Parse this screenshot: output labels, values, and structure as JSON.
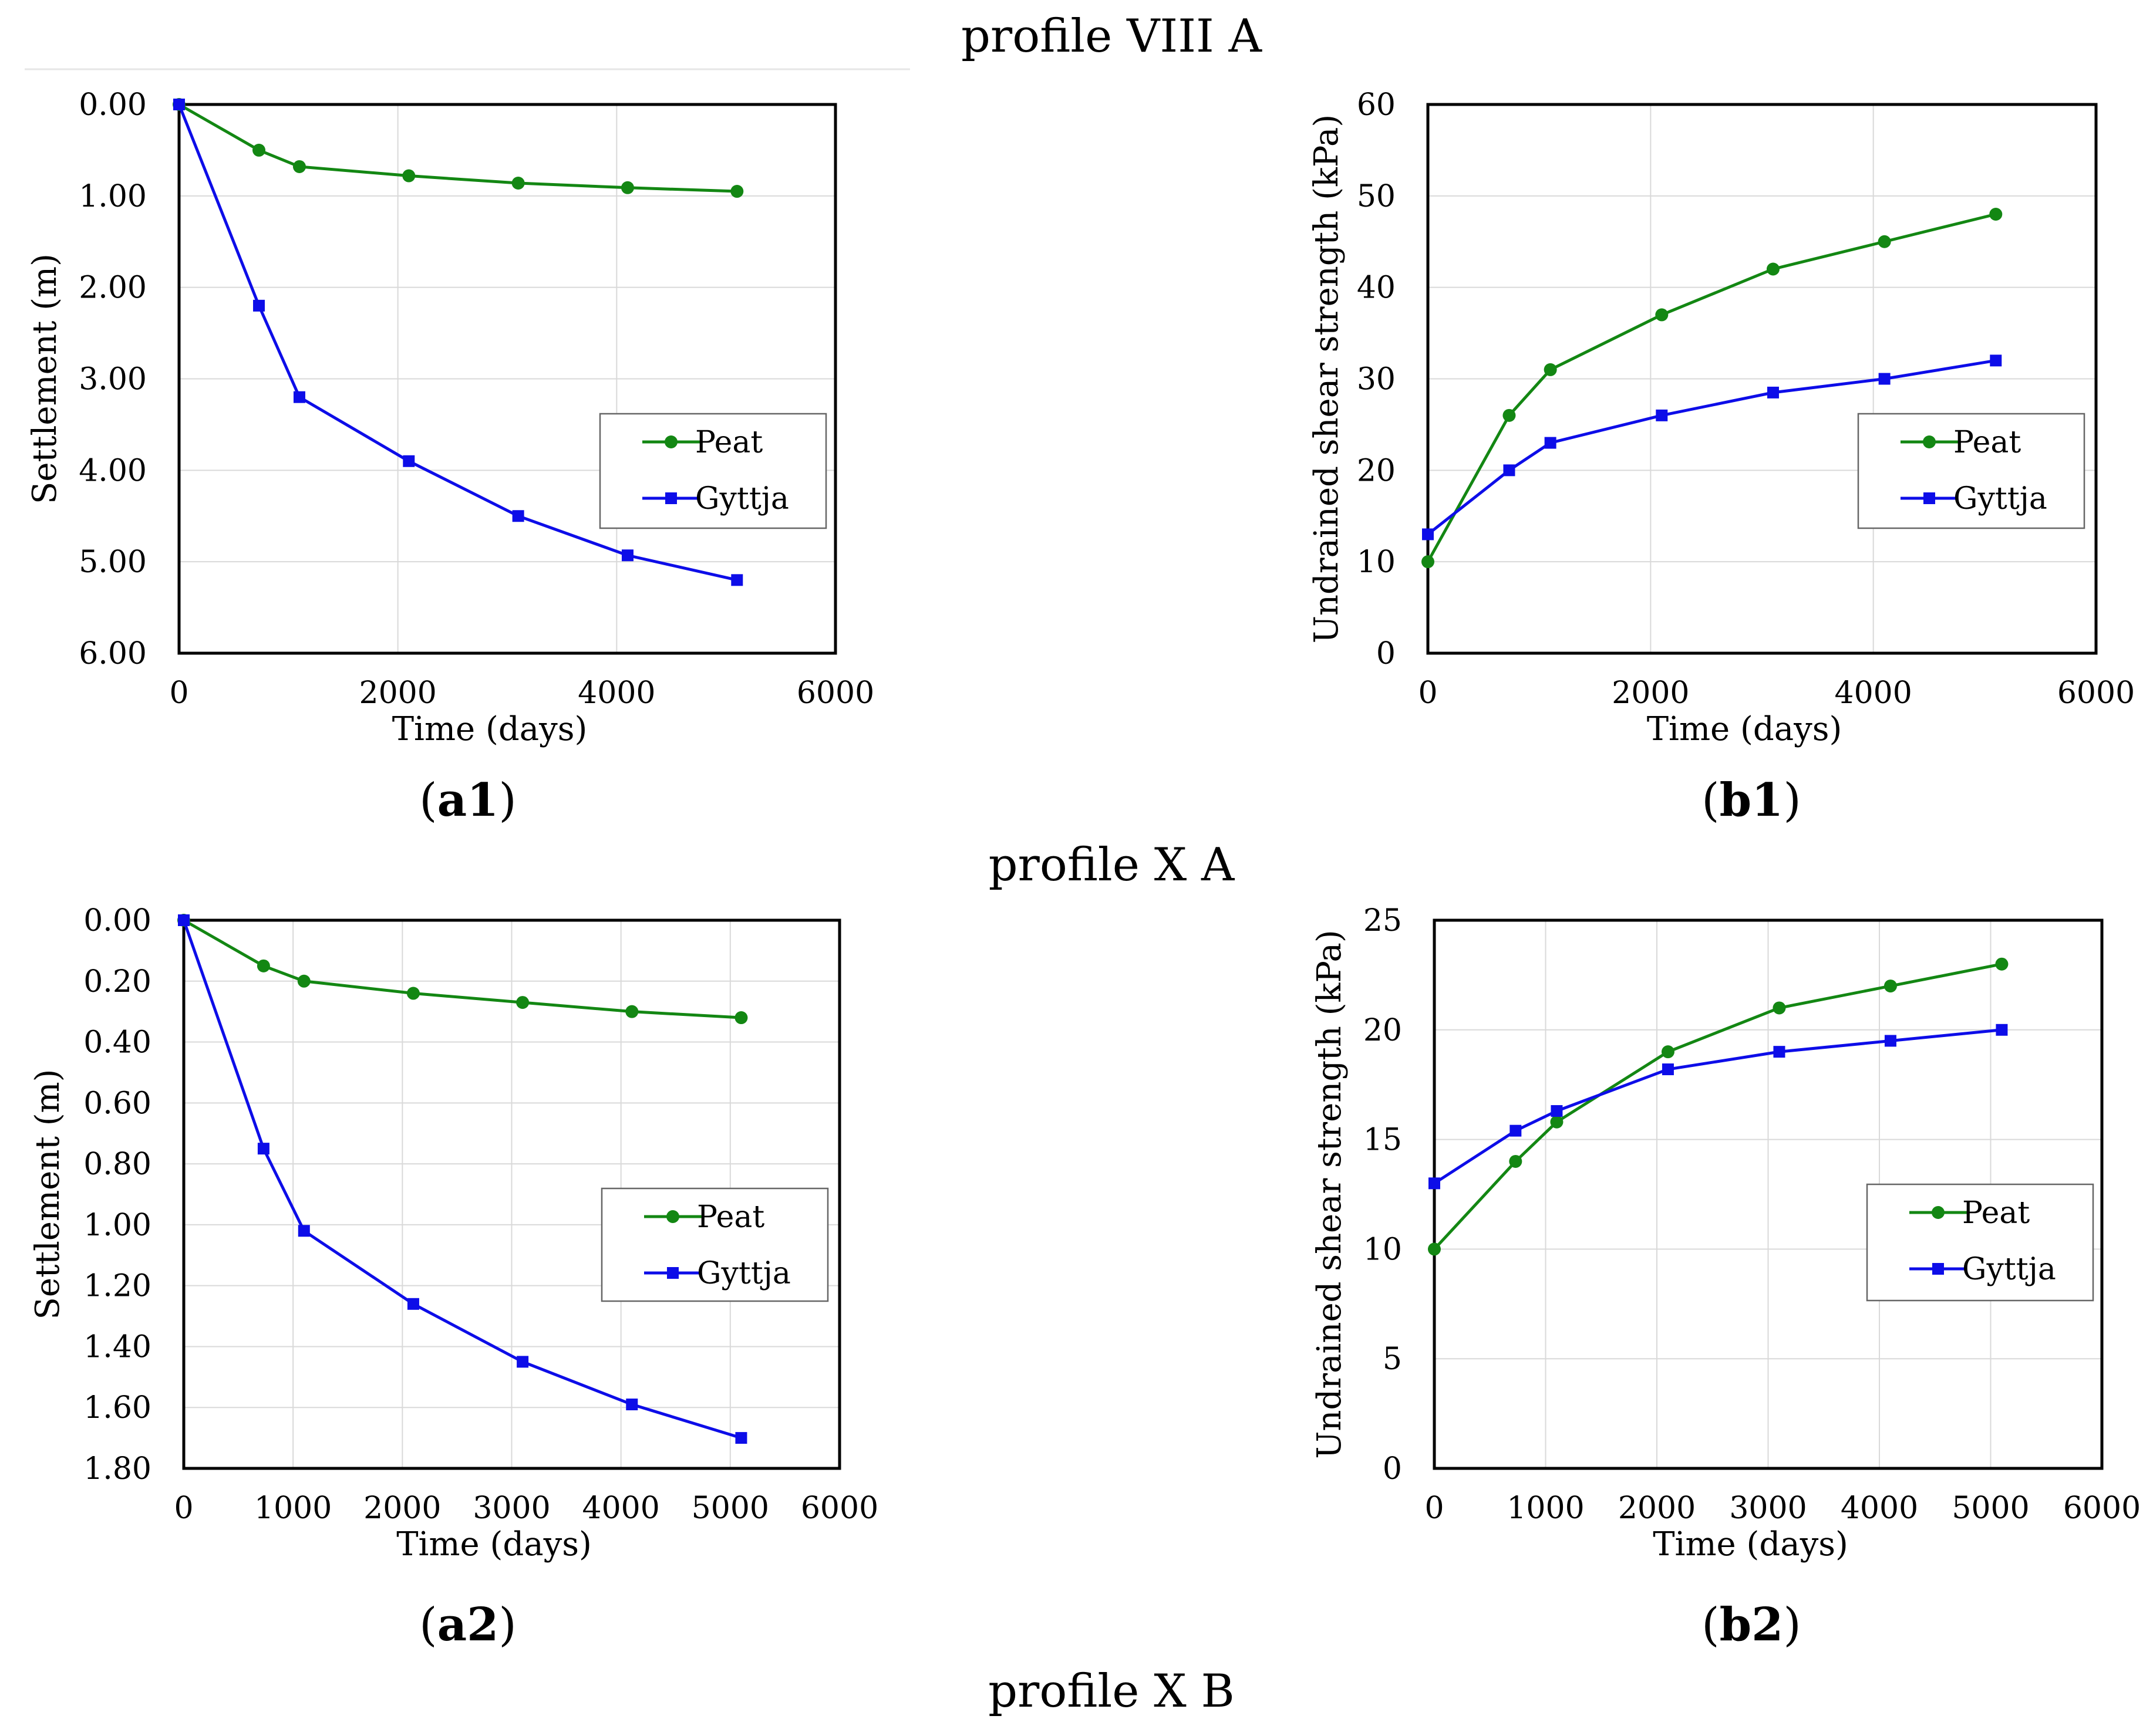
{
  "figure": {
    "headings": [
      "profile VIII A",
      "profile X A",
      "profile X B"
    ]
  },
  "colors": {
    "peat": "#138713",
    "gyttja": "#0d0de8",
    "grid": "#d9d9d9",
    "axis": "#000000"
  },
  "chart_data": [
    {
      "panel": "a1",
      "type": "line",
      "xlabel": "Time (days)",
      "ylabel": "Settlement (m)",
      "xlim": [
        0,
        6000
      ],
      "ylim": [
        0,
        6
      ],
      "y_inverted": true,
      "xticks": [
        0,
        2000,
        4000,
        6000
      ],
      "xtick_labels": [
        "0",
        "2000",
        "4000",
        "6000"
      ],
      "yticks": [
        0,
        1,
        2,
        3,
        4,
        5,
        6
      ],
      "ytick_labels": [
        "0.00",
        "1.00",
        "2.00",
        "3.00",
        "4.00",
        "5.00",
        "6.00"
      ],
      "grid": true,
      "legend": "right",
      "series": [
        {
          "name": "Peat",
          "marker": "circle",
          "color_key": "peat",
          "x": [
            0,
            730,
            1100,
            2100,
            3100,
            4100,
            5100
          ],
          "y": [
            0,
            0.5,
            0.68,
            0.78,
            0.86,
            0.91,
            0.95
          ]
        },
        {
          "name": "Gyttja",
          "marker": "square",
          "color_key": "gyttja",
          "x": [
            0,
            730,
            1100,
            2100,
            3100,
            4100,
            5100
          ],
          "y": [
            0,
            2.2,
            3.2,
            3.9,
            4.5,
            4.93,
            5.2
          ]
        }
      ]
    },
    {
      "panel": "b1",
      "type": "line",
      "xlabel": "Time (days)",
      "ylabel": "Undrained shear strength  (kPa)",
      "xlim": [
        0,
        6000
      ],
      "ylim": [
        0,
        60
      ],
      "y_inverted": false,
      "xticks": [
        0,
        2000,
        4000,
        6000
      ],
      "xtick_labels": [
        "0",
        "2000",
        "4000",
        "6000"
      ],
      "yticks": [
        0,
        10,
        20,
        30,
        40,
        50,
        60
      ],
      "ytick_labels": [
        "0",
        "10",
        "20",
        "30",
        "40",
        "50",
        "60"
      ],
      "grid": true,
      "legend": "right",
      "series": [
        {
          "name": "Peat",
          "marker": "circle",
          "color_key": "peat",
          "x": [
            0,
            730,
            1100,
            2100,
            3100,
            4100,
            5100
          ],
          "y": [
            10,
            26,
            31,
            37,
            42,
            45,
            48
          ]
        },
        {
          "name": "Gyttja",
          "marker": "square",
          "color_key": "gyttja",
          "x": [
            0,
            730,
            1100,
            2100,
            3100,
            4100,
            5100
          ],
          "y": [
            13,
            20,
            23,
            26,
            28.5,
            30,
            32
          ]
        }
      ]
    },
    {
      "panel": "a2",
      "type": "line",
      "xlabel": "Time (days)",
      "ylabel": "Settlement (m)",
      "xlim": [
        0,
        6000
      ],
      "ylim": [
        0,
        1.8
      ],
      "y_inverted": true,
      "xticks": [
        0,
        1000,
        2000,
        3000,
        4000,
        5000,
        6000
      ],
      "xtick_labels": [
        "0",
        "1000",
        "2000",
        "3000",
        "4000",
        "5000",
        "6000"
      ],
      "yticks": [
        0,
        0.2,
        0.4,
        0.6,
        0.8,
        1.0,
        1.2,
        1.4,
        1.6,
        1.8
      ],
      "ytick_labels": [
        "0.00",
        "0.20",
        "0.40",
        "0.60",
        "0.80",
        "1.00",
        "1.20",
        "1.40",
        "1.60",
        "1.80"
      ],
      "grid": true,
      "legend": "right",
      "series": [
        {
          "name": "Peat",
          "marker": "circle",
          "color_key": "peat",
          "x": [
            0,
            730,
            1100,
            2100,
            3100,
            4100,
            5100
          ],
          "y": [
            0,
            0.15,
            0.2,
            0.24,
            0.27,
            0.3,
            0.32
          ]
        },
        {
          "name": "Gyttja",
          "marker": "square",
          "color_key": "gyttja",
          "x": [
            0,
            730,
            1100,
            2100,
            3100,
            4100,
            5100
          ],
          "y": [
            0,
            0.75,
            1.02,
            1.26,
            1.45,
            1.59,
            1.7
          ]
        }
      ]
    },
    {
      "panel": "b2",
      "type": "line",
      "xlabel": "Time (days)",
      "ylabel": "Undrained shear strength  (kPa)",
      "xlim": [
        0,
        6000
      ],
      "ylim": [
        0,
        25
      ],
      "y_inverted": false,
      "xticks": [
        0,
        1000,
        2000,
        3000,
        4000,
        5000,
        6000
      ],
      "xtick_labels": [
        "0",
        "1000",
        "2000",
        "3000",
        "4000",
        "5000",
        "6000"
      ],
      "yticks": [
        0,
        5,
        10,
        15,
        20,
        25
      ],
      "ytick_labels": [
        "0",
        "5",
        "10",
        "15",
        "20",
        "25"
      ],
      "grid": true,
      "legend": "right",
      "series": [
        {
          "name": "Peat",
          "marker": "circle",
          "color_key": "peat",
          "x": [
            0,
            730,
            1100,
            2100,
            3100,
            4100,
            5100
          ],
          "y": [
            10,
            14,
            15.8,
            19,
            21,
            22,
            23
          ]
        },
        {
          "name": "Gyttja",
          "marker": "square",
          "color_key": "gyttja",
          "x": [
            0,
            730,
            1100,
            2100,
            3100,
            4100,
            5100
          ],
          "y": [
            13,
            15.4,
            16.3,
            18.2,
            19,
            19.5,
            20
          ]
        }
      ]
    }
  ]
}
